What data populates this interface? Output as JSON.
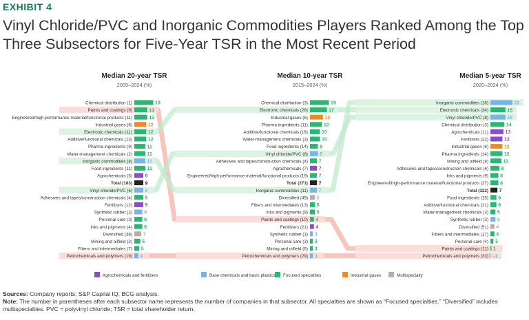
{
  "exhibit_label": "EXHIBIT 4",
  "title": "Vinyl Chloride/PVC and Inorganic Commodities Players Ranked Among the Top Three Subsectors for Five-Year TSR in the Most Recent Period",
  "sources_label": "Sources:",
  "sources_text": "Company reports; S&P Capital IQ; BCG analysis.",
  "note_label": "Note:",
  "note_text": "The number in parentheses after each subsector name represents the number of companies in that subsector. All specialties are shown as “Focused specialties.” “Diversified” includes multispecialties. PVC = polyvinyl chloride; TSR = total shareholder return.",
  "colors": {
    "agro": "#8a4dc8",
    "base": "#77b4ea",
    "focused": "#2bb673",
    "gases": "#f28a1a",
    "multi": "#b9aea5",
    "total": "#222222",
    "highlight_red": "#fbdcd8",
    "highlight_green": "#dcf3e2",
    "line_red": "#f3b1a8",
    "line_green": "#bfe9cc"
  },
  "chart_data": {
    "type": "bar",
    "legend": [
      {
        "key": "agro",
        "label": "Agrochemicals and fertilizers"
      },
      {
        "key": "base",
        "label": "Base chemicals and basic plastics"
      },
      {
        "key": "focused",
        "label": "Focused specialties"
      },
      {
        "key": "gases",
        "label": "Industrial gases"
      },
      {
        "key": "multi",
        "label": "Multispecialty"
      }
    ],
    "panels": [
      {
        "title": "Median 20-year TSR",
        "subtitle": "2005–2024 (%)",
        "rows": [
          {
            "label": "Chemical distribution (1)",
            "value": "19",
            "cat": "focused"
          },
          {
            "label": "Paints and coatings (9)",
            "value": "13",
            "cat": "focused",
            "hl": "red"
          },
          {
            "label": "Engineered/high-performance material/functional products (11)",
            "value": "13",
            "cat": "focused"
          },
          {
            "label": "Industrial gases (6)",
            "value": "12",
            "cat": "gases"
          },
          {
            "label": "Electronic chemicals (11)",
            "value": "12",
            "cat": "focused",
            "hl": "green"
          },
          {
            "label": "Additive/functional chemicals (13)",
            "value": "12",
            "cat": "focused"
          },
          {
            "label": "Pharma ingredients (9)",
            "value": "11",
            "cat": "focused"
          },
          {
            "label": "Water-management chemicals (2)",
            "value": "11",
            "cat": "focused"
          },
          {
            "label": "Inorganic commodities (8)",
            "value": "11",
            "cat": "base",
            "hl": "green"
          },
          {
            "label": "Food ingredients (11)",
            "value": "11",
            "cat": "focused"
          },
          {
            "label": "Agrochemicals (5)",
            "value": "9",
            "cat": "agro"
          },
          {
            "label": "Total (183)",
            "value": "9",
            "cat": "total"
          },
          {
            "label": "Vinyl chloride/PVC (6)",
            "value": "9",
            "cat": "base",
            "hl": "green"
          },
          {
            "label": "Adhesives and tapes/construction chemicals (4)",
            "value": "9",
            "cat": "focused"
          },
          {
            "label": "Fertilizers (12)",
            "value": "9",
            "cat": "agro"
          },
          {
            "label": "Synthetic rubber (2)",
            "value": "8",
            "cat": "base"
          },
          {
            "label": "Personal care (3)",
            "value": "8",
            "cat": "focused"
          },
          {
            "label": "Inks and pigments (4)",
            "value": "8",
            "cat": "focused"
          },
          {
            "label": "Diversified (38)",
            "value": "7",
            "cat": "multi"
          },
          {
            "label": "Mining and oilfield (2)",
            "value": "6",
            "cat": "focused"
          },
          {
            "label": "Fibers and intermediates (7)",
            "value": "5",
            "cat": "focused"
          },
          {
            "label": "Petrochemicals and polymers (19)",
            "value": "4",
            "cat": "base",
            "hl": "red"
          }
        ]
      },
      {
        "title": "Median 10-year TSR",
        "subtitle": "2015–2024 (%)",
        "rows": [
          {
            "label": "Chemical distribution (3)",
            "value": "19",
            "cat": "focused"
          },
          {
            "label": "Electronic chemicals (26)",
            "value": "17",
            "cat": "focused",
            "hl": "green"
          },
          {
            "label": "Industrial gases (6)",
            "value": "13",
            "cat": "gases"
          },
          {
            "label": "Pharma ingredients (11)",
            "value": "12",
            "cat": "focused"
          },
          {
            "label": "Additive/functional chemicals (16)",
            "value": "10",
            "cat": "focused"
          },
          {
            "label": "Water-management chemicals (3)",
            "value": "10",
            "cat": "focused"
          },
          {
            "label": "Food ingredients (14)",
            "value": "8",
            "cat": "focused"
          },
          {
            "label": "Vinyl chloride/PVC (8)",
            "value": "8",
            "cat": "base",
            "hl": "green"
          },
          {
            "label": "Adhesives and tapes/construction chemicals (4)",
            "value": "7",
            "cat": "focused"
          },
          {
            "label": "Agrochemicals (7)",
            "value": "7",
            "cat": "agro"
          },
          {
            "label": "Engineered/high-performance material/functional products (19)",
            "value": "7",
            "cat": "focused"
          },
          {
            "label": "Total (271)",
            "value": "7",
            "cat": "total"
          },
          {
            "label": "Inorganic commodities (11)",
            "value": "7",
            "cat": "base",
            "hl": "green"
          },
          {
            "label": "Diversified (49)",
            "value": "5",
            "cat": "multi"
          },
          {
            "label": "Fibers and intermediates (13)",
            "value": "5",
            "cat": "focused"
          },
          {
            "label": "Inks and pigments (9)",
            "value": "5",
            "cat": "focused"
          },
          {
            "label": "Paints and coatings (10)",
            "value": "4",
            "cat": "focused",
            "hl": "red"
          },
          {
            "label": "Fertilizers (21)",
            "value": "4",
            "cat": "agro"
          },
          {
            "label": "Synthetic rubber (3)",
            "value": "3",
            "cat": "base"
          },
          {
            "label": "Personal care (3)",
            "value": "3",
            "cat": "focused"
          },
          {
            "label": "Mining and oilfield (6)",
            "value": "3",
            "cat": "focused"
          },
          {
            "label": "Petrochemicals and polymers (29)",
            "value": "3",
            "cat": "base",
            "hl": "red"
          }
        ]
      },
      {
        "title": "Median 5-year TSR",
        "subtitle": "2020–2024 (%)",
        "rows": [
          {
            "label": "Inorganic commodities (16)",
            "value": "22",
            "cat": "base",
            "hl": "green"
          },
          {
            "label": "Electronic chemicals (34)",
            "value": "15",
            "cat": "focused",
            "hl": "green"
          },
          {
            "label": "Vinyl chloride/PVC (8)",
            "value": "15",
            "cat": "base",
            "hl": "green"
          },
          {
            "label": "Chemical distribution (3)",
            "value": "14",
            "cat": "focused"
          },
          {
            "label": "Agrochemicals (11)",
            "value": "13",
            "cat": "agro"
          },
          {
            "label": "Fertilizers (22)",
            "value": "12",
            "cat": "agro"
          },
          {
            "label": "Industrial gases (6)",
            "value": "12",
            "cat": "gases"
          },
          {
            "label": "Pharma ingredients (14)",
            "value": "12",
            "cat": "focused"
          },
          {
            "label": "Mining and oilfield (8)",
            "value": "11",
            "cat": "focused"
          },
          {
            "label": "Adhesives and tapes/construction chemicals (6)",
            "value": "9",
            "cat": "focused"
          },
          {
            "label": "Inks and pigments (9)",
            "value": "8",
            "cat": "focused"
          },
          {
            "label": "Engineered/high-performance material/functional products (27)",
            "value": "8",
            "cat": "focused"
          },
          {
            "label": "Total (322)",
            "value": "7",
            "cat": "total"
          },
          {
            "label": "Food ingredients (15)",
            "value": "6",
            "cat": "focused"
          },
          {
            "label": "Additive/functional chemicals (21)",
            "value": "6",
            "cat": "focused"
          },
          {
            "label": "Water-management chemicals (3)",
            "value": "5",
            "cat": "focused"
          },
          {
            "label": "Synthetic rubber (3)",
            "value": "5",
            "cat": "base"
          },
          {
            "label": "Diversified (51)",
            "value": "4",
            "cat": "multi"
          },
          {
            "label": "Fibers and intermediates (17)",
            "value": "4",
            "cat": "focused"
          },
          {
            "label": "Personal care (4)",
            "value": "3",
            "cat": "focused"
          },
          {
            "label": "Paints and coatings (11)",
            "value": "1",
            "cat": "focused",
            "hl": "red"
          },
          {
            "label": "Petrochemicals and polymers (33)",
            "value": "–1",
            "cat": "base",
            "hl": "red"
          }
        ]
      }
    ],
    "connectors": [
      {
        "name": "Paints and coatings",
        "color": "red",
        "rows": [
          1,
          16,
          20
        ]
      },
      {
        "name": "Petrochemicals and polymers",
        "color": "red",
        "rows": [
          21,
          21,
          21
        ]
      },
      {
        "name": "Electronic chemicals",
        "color": "green",
        "rows": [
          4,
          1,
          1
        ]
      },
      {
        "name": "Inorganic commodities",
        "color": "green",
        "rows": [
          8,
          12,
          0
        ]
      },
      {
        "name": "Vinyl chloride/PVC",
        "color": "green",
        "rows": [
          12,
          7,
          2
        ]
      }
    ]
  }
}
